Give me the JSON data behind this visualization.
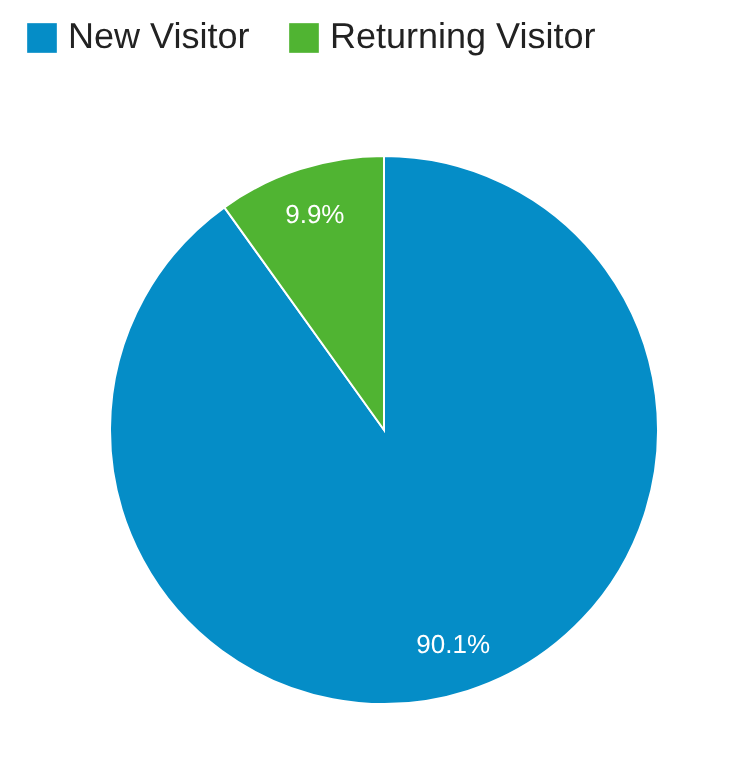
{
  "chart_data": {
    "type": "pie",
    "categories": [
      "New Visitor",
      "Returning Visitor"
    ],
    "values": [
      90.1,
      9.9
    ],
    "colors": [
      "#058dc7",
      "#50b432"
    ],
    "value_labels": [
      "90.1%",
      "9.9%"
    ],
    "legend": "top left"
  }
}
